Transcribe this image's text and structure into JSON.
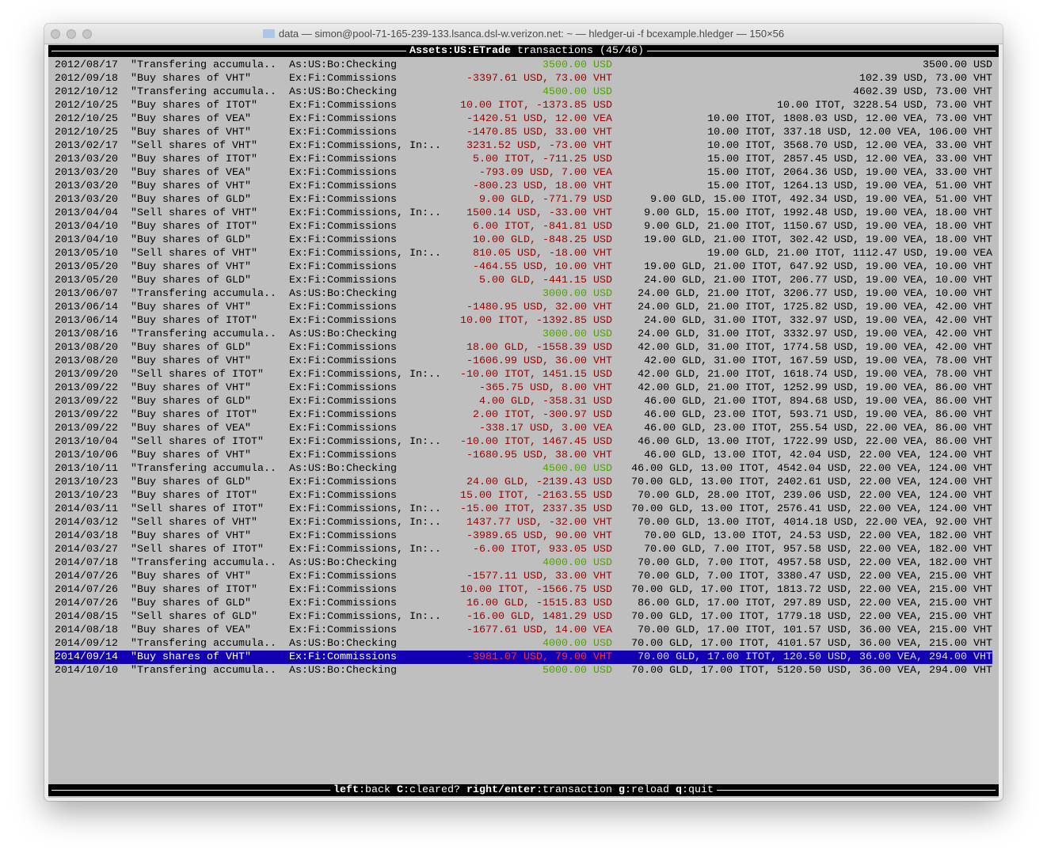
{
  "window": {
    "title": "data — simon@pool-71-165-239-133.lsanca.dsl-w.verizon.net: ~ — hledger-ui -f bcexample.hledger — 150×56",
    "title_icon": "folder-icon"
  },
  "header": {
    "account": "Assets:US:ETrade",
    "rest": " transactions (45/46)"
  },
  "colors": {
    "positive": "#4fa300",
    "negative": "#990000",
    "selected_bg": "#1400b3",
    "background": "#bfbfbf"
  },
  "selected_index": 44,
  "rows": [
    {
      "date": "2012/08/17",
      "desc": "\"Transfering accumula..",
      "acct": "As:US:Bo:Checking",
      "amt": "3500.00 USD",
      "sign": "pos",
      "bal": "3500.00 USD"
    },
    {
      "date": "2012/09/18",
      "desc": "\"Buy shares of VHT\"",
      "acct": "Ex:Fi:Commissions",
      "amt": "-3397.61 USD, 73.00 VHT",
      "sign": "neg",
      "bal": "102.39 USD, 73.00 VHT"
    },
    {
      "date": "2012/10/12",
      "desc": "\"Transfering accumula..",
      "acct": "As:US:Bo:Checking",
      "amt": "4500.00 USD",
      "sign": "pos",
      "bal": "4602.39 USD, 73.00 VHT"
    },
    {
      "date": "2012/10/25",
      "desc": "\"Buy shares of ITOT\"",
      "acct": "Ex:Fi:Commissions",
      "amt": "10.00 ITOT, -1373.85 USD",
      "sign": "neg",
      "bal": "10.00 ITOT, 3228.54 USD, 73.00 VHT"
    },
    {
      "date": "2012/10/25",
      "desc": "\"Buy shares of VEA\"",
      "acct": "Ex:Fi:Commissions",
      "amt": "-1420.51 USD, 12.00 VEA",
      "sign": "neg",
      "bal": "10.00 ITOT, 1808.03 USD, 12.00 VEA, 73.00 VHT"
    },
    {
      "date": "2012/10/25",
      "desc": "\"Buy shares of VHT\"",
      "acct": "Ex:Fi:Commissions",
      "amt": "-1470.85 USD, 33.00 VHT",
      "sign": "neg",
      "bal": "10.00 ITOT, 337.18 USD, 12.00 VEA, 106.00 VHT"
    },
    {
      "date": "2013/02/17",
      "desc": "\"Sell shares of VHT\"",
      "acct": "Ex:Fi:Commissions, In:..",
      "amt": "3231.52 USD, -73.00 VHT",
      "sign": "neg",
      "bal": "10.00 ITOT, 3568.70 USD, 12.00 VEA, 33.00 VHT"
    },
    {
      "date": "2013/03/20",
      "desc": "\"Buy shares of ITOT\"",
      "acct": "Ex:Fi:Commissions",
      "amt": "5.00 ITOT, -711.25 USD",
      "sign": "neg",
      "bal": "15.00 ITOT, 2857.45 USD, 12.00 VEA, 33.00 VHT"
    },
    {
      "date": "2013/03/20",
      "desc": "\"Buy shares of VEA\"",
      "acct": "Ex:Fi:Commissions",
      "amt": "-793.09 USD, 7.00 VEA",
      "sign": "neg",
      "bal": "15.00 ITOT, 2064.36 USD, 19.00 VEA, 33.00 VHT"
    },
    {
      "date": "2013/03/20",
      "desc": "\"Buy shares of VHT\"",
      "acct": "Ex:Fi:Commissions",
      "amt": "-800.23 USD, 18.00 VHT",
      "sign": "neg",
      "bal": "15.00 ITOT, 1264.13 USD, 19.00 VEA, 51.00 VHT"
    },
    {
      "date": "2013/03/20",
      "desc": "\"Buy shares of GLD\"",
      "acct": "Ex:Fi:Commissions",
      "amt": "9.00 GLD, -771.79 USD",
      "sign": "neg",
      "bal": "9.00 GLD, 15.00 ITOT, 492.34 USD, 19.00 VEA, 51.00 VHT"
    },
    {
      "date": "2013/04/04",
      "desc": "\"Sell shares of VHT\"",
      "acct": "Ex:Fi:Commissions, In:..",
      "amt": "1500.14 USD, -33.00 VHT",
      "sign": "neg",
      "bal": "9.00 GLD, 15.00 ITOT, 1992.48 USD, 19.00 VEA, 18.00 VHT"
    },
    {
      "date": "2013/04/10",
      "desc": "\"Buy shares of ITOT\"",
      "acct": "Ex:Fi:Commissions",
      "amt": "6.00 ITOT, -841.81 USD",
      "sign": "neg",
      "bal": "9.00 GLD, 21.00 ITOT, 1150.67 USD, 19.00 VEA, 18.00 VHT"
    },
    {
      "date": "2013/04/10",
      "desc": "\"Buy shares of GLD\"",
      "acct": "Ex:Fi:Commissions",
      "amt": "10.00 GLD, -848.25 USD",
      "sign": "neg",
      "bal": "19.00 GLD, 21.00 ITOT, 302.42 USD, 19.00 VEA, 18.00 VHT"
    },
    {
      "date": "2013/05/10",
      "desc": "\"Sell shares of VHT\"",
      "acct": "Ex:Fi:Commissions, In:..",
      "amt": "810.05 USD, -18.00 VHT",
      "sign": "neg",
      "bal": "19.00 GLD, 21.00 ITOT, 1112.47 USD, 19.00 VEA"
    },
    {
      "date": "2013/05/20",
      "desc": "\"Buy shares of VHT\"",
      "acct": "Ex:Fi:Commissions",
      "amt": "-464.55 USD, 10.00 VHT",
      "sign": "neg",
      "bal": "19.00 GLD, 21.00 ITOT, 647.92 USD, 19.00 VEA, 10.00 VHT"
    },
    {
      "date": "2013/05/20",
      "desc": "\"Buy shares of GLD\"",
      "acct": "Ex:Fi:Commissions",
      "amt": "5.00 GLD, -441.15 USD",
      "sign": "neg",
      "bal": "24.00 GLD, 21.00 ITOT, 206.77 USD, 19.00 VEA, 10.00 VHT"
    },
    {
      "date": "2013/06/07",
      "desc": "\"Transfering accumula..",
      "acct": "As:US:Bo:Checking",
      "amt": "3000.00 USD",
      "sign": "pos",
      "bal": "24.00 GLD, 21.00 ITOT, 3206.77 USD, 19.00 VEA, 10.00 VHT"
    },
    {
      "date": "2013/06/14",
      "desc": "\"Buy shares of VHT\"",
      "acct": "Ex:Fi:Commissions",
      "amt": "-1480.95 USD, 32.00 VHT",
      "sign": "neg",
      "bal": "24.00 GLD, 21.00 ITOT, 1725.82 USD, 19.00 VEA, 42.00 VHT"
    },
    {
      "date": "2013/06/14",
      "desc": "\"Buy shares of ITOT\"",
      "acct": "Ex:Fi:Commissions",
      "amt": "10.00 ITOT, -1392.85 USD",
      "sign": "neg",
      "bal": "24.00 GLD, 31.00 ITOT, 332.97 USD, 19.00 VEA, 42.00 VHT"
    },
    {
      "date": "2013/08/16",
      "desc": "\"Transfering accumula..",
      "acct": "As:US:Bo:Checking",
      "amt": "3000.00 USD",
      "sign": "pos",
      "bal": "24.00 GLD, 31.00 ITOT, 3332.97 USD, 19.00 VEA, 42.00 VHT"
    },
    {
      "date": "2013/08/20",
      "desc": "\"Buy shares of GLD\"",
      "acct": "Ex:Fi:Commissions",
      "amt": "18.00 GLD, -1558.39 USD",
      "sign": "neg",
      "bal": "42.00 GLD, 31.00 ITOT, 1774.58 USD, 19.00 VEA, 42.00 VHT"
    },
    {
      "date": "2013/08/20",
      "desc": "\"Buy shares of VHT\"",
      "acct": "Ex:Fi:Commissions",
      "amt": "-1606.99 USD, 36.00 VHT",
      "sign": "neg",
      "bal": "42.00 GLD, 31.00 ITOT, 167.59 USD, 19.00 VEA, 78.00 VHT"
    },
    {
      "date": "2013/09/20",
      "desc": "\"Sell shares of ITOT\"",
      "acct": "Ex:Fi:Commissions, In:..",
      "amt": "-10.00 ITOT, 1451.15 USD",
      "sign": "neg",
      "bal": "42.00 GLD, 21.00 ITOT, 1618.74 USD, 19.00 VEA, 78.00 VHT"
    },
    {
      "date": "2013/09/22",
      "desc": "\"Buy shares of VHT\"",
      "acct": "Ex:Fi:Commissions",
      "amt": "-365.75 USD, 8.00 VHT",
      "sign": "neg",
      "bal": "42.00 GLD, 21.00 ITOT, 1252.99 USD, 19.00 VEA, 86.00 VHT"
    },
    {
      "date": "2013/09/22",
      "desc": "\"Buy shares of GLD\"",
      "acct": "Ex:Fi:Commissions",
      "amt": "4.00 GLD, -358.31 USD",
      "sign": "neg",
      "bal": "46.00 GLD, 21.00 ITOT, 894.68 USD, 19.00 VEA, 86.00 VHT"
    },
    {
      "date": "2013/09/22",
      "desc": "\"Buy shares of ITOT\"",
      "acct": "Ex:Fi:Commissions",
      "amt": "2.00 ITOT, -300.97 USD",
      "sign": "neg",
      "bal": "46.00 GLD, 23.00 ITOT, 593.71 USD, 19.00 VEA, 86.00 VHT"
    },
    {
      "date": "2013/09/22",
      "desc": "\"Buy shares of VEA\"",
      "acct": "Ex:Fi:Commissions",
      "amt": "-338.17 USD, 3.00 VEA",
      "sign": "neg",
      "bal": "46.00 GLD, 23.00 ITOT, 255.54 USD, 22.00 VEA, 86.00 VHT"
    },
    {
      "date": "2013/10/04",
      "desc": "\"Sell shares of ITOT\"",
      "acct": "Ex:Fi:Commissions, In:..",
      "amt": "-10.00 ITOT, 1467.45 USD",
      "sign": "neg",
      "bal": "46.00 GLD, 13.00 ITOT, 1722.99 USD, 22.00 VEA, 86.00 VHT"
    },
    {
      "date": "2013/10/06",
      "desc": "\"Buy shares of VHT\"",
      "acct": "Ex:Fi:Commissions",
      "amt": "-1680.95 USD, 38.00 VHT",
      "sign": "neg",
      "bal": "46.00 GLD, 13.00 ITOT, 42.04 USD, 22.00 VEA, 124.00 VHT"
    },
    {
      "date": "2013/10/11",
      "desc": "\"Transfering accumula..",
      "acct": "As:US:Bo:Checking",
      "amt": "4500.00 USD",
      "sign": "pos",
      "bal": "46.00 GLD, 13.00 ITOT, 4542.04 USD, 22.00 VEA, 124.00 VHT"
    },
    {
      "date": "2013/10/23",
      "desc": "\"Buy shares of GLD\"",
      "acct": "Ex:Fi:Commissions",
      "amt": "24.00 GLD, -2139.43 USD",
      "sign": "neg",
      "bal": "70.00 GLD, 13.00 ITOT, 2402.61 USD, 22.00 VEA, 124.00 VHT"
    },
    {
      "date": "2013/10/23",
      "desc": "\"Buy shares of ITOT\"",
      "acct": "Ex:Fi:Commissions",
      "amt": "15.00 ITOT, -2163.55 USD",
      "sign": "neg",
      "bal": "70.00 GLD, 28.00 ITOT, 239.06 USD, 22.00 VEA, 124.00 VHT"
    },
    {
      "date": "2014/03/11",
      "desc": "\"Sell shares of ITOT\"",
      "acct": "Ex:Fi:Commissions, In:..",
      "amt": "-15.00 ITOT, 2337.35 USD",
      "sign": "neg",
      "bal": "70.00 GLD, 13.00 ITOT, 2576.41 USD, 22.00 VEA, 124.00 VHT"
    },
    {
      "date": "2014/03/12",
      "desc": "\"Sell shares of VHT\"",
      "acct": "Ex:Fi:Commissions, In:..",
      "amt": "1437.77 USD, -32.00 VHT",
      "sign": "neg",
      "bal": "70.00 GLD, 13.00 ITOT, 4014.18 USD, 22.00 VEA, 92.00 VHT"
    },
    {
      "date": "2014/03/18",
      "desc": "\"Buy shares of VHT\"",
      "acct": "Ex:Fi:Commissions",
      "amt": "-3989.65 USD, 90.00 VHT",
      "sign": "neg",
      "bal": "70.00 GLD, 13.00 ITOT, 24.53 USD, 22.00 VEA, 182.00 VHT"
    },
    {
      "date": "2014/03/27",
      "desc": "\"Sell shares of ITOT\"",
      "acct": "Ex:Fi:Commissions, In:..",
      "amt": "-6.00 ITOT, 933.05 USD",
      "sign": "neg",
      "bal": "70.00 GLD, 7.00 ITOT, 957.58 USD, 22.00 VEA, 182.00 VHT"
    },
    {
      "date": "2014/07/18",
      "desc": "\"Transfering accumula..",
      "acct": "As:US:Bo:Checking",
      "amt": "4000.00 USD",
      "sign": "pos",
      "bal": "70.00 GLD, 7.00 ITOT, 4957.58 USD, 22.00 VEA, 182.00 VHT"
    },
    {
      "date": "2014/07/26",
      "desc": "\"Buy shares of VHT\"",
      "acct": "Ex:Fi:Commissions",
      "amt": "-1577.11 USD, 33.00 VHT",
      "sign": "neg",
      "bal": "70.00 GLD, 7.00 ITOT, 3380.47 USD, 22.00 VEA, 215.00 VHT"
    },
    {
      "date": "2014/07/26",
      "desc": "\"Buy shares of ITOT\"",
      "acct": "Ex:Fi:Commissions",
      "amt": "10.00 ITOT, -1566.75 USD",
      "sign": "neg",
      "bal": "70.00 GLD, 17.00 ITOT, 1813.72 USD, 22.00 VEA, 215.00 VHT"
    },
    {
      "date": "2014/07/26",
      "desc": "\"Buy shares of GLD\"",
      "acct": "Ex:Fi:Commissions",
      "amt": "16.00 GLD, -1515.83 USD",
      "sign": "neg",
      "bal": "86.00 GLD, 17.00 ITOT, 297.89 USD, 22.00 VEA, 215.00 VHT"
    },
    {
      "date": "2014/08/15",
      "desc": "\"Sell shares of GLD\"",
      "acct": "Ex:Fi:Commissions, In:..",
      "amt": "-16.00 GLD, 1481.29 USD",
      "sign": "neg",
      "bal": "70.00 GLD, 17.00 ITOT, 1779.18 USD, 22.00 VEA, 215.00 VHT"
    },
    {
      "date": "2014/08/18",
      "desc": "\"Buy shares of VEA\"",
      "acct": "Ex:Fi:Commissions",
      "amt": "-1677.61 USD, 14.00 VEA",
      "sign": "neg",
      "bal": "70.00 GLD, 17.00 ITOT, 101.57 USD, 36.00 VEA, 215.00 VHT"
    },
    {
      "date": "2014/09/12",
      "desc": "\"Transfering accumula..",
      "acct": "As:US:Bo:Checking",
      "amt": "4000.00 USD",
      "sign": "pos",
      "bal": "70.00 GLD, 17.00 ITOT, 4101.57 USD, 36.00 VEA, 215.00 VHT"
    },
    {
      "date": "2014/09/14",
      "desc": "\"Buy shares of VHT\"",
      "acct": "Ex:Fi:Commissions",
      "amt": "-3981.07 USD, 79.00 VHT",
      "sign": "neg",
      "bal": "70.00 GLD, 17.00 ITOT, 120.50 USD, 36.00 VEA, 294.00 VHT"
    },
    {
      "date": "2014/10/10",
      "desc": "\"Transfering accumula..",
      "acct": "As:US:Bo:Checking",
      "amt": "5000.00 USD",
      "sign": "pos",
      "bal": "70.00 GLD, 17.00 ITOT, 5120.50 USD, 36.00 VEA, 294.00 VHT"
    }
  ],
  "footer": {
    "keys": [
      {
        "key": "left",
        "action": "back"
      },
      {
        "key": "C",
        "action": "cleared?"
      },
      {
        "key": "right/enter",
        "action": "transaction"
      },
      {
        "key": "g",
        "action": "reload"
      },
      {
        "key": "q",
        "action": "quit"
      }
    ]
  }
}
